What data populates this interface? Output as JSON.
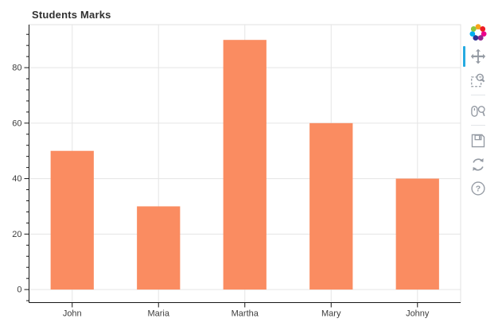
{
  "chart": {
    "title": "Students Marks"
  },
  "chart_data": {
    "type": "bar",
    "title": "Students Marks",
    "categories": [
      "John",
      "Maria",
      "Martha",
      "Mary",
      "Johny"
    ],
    "values": [
      50,
      30,
      90,
      60,
      40
    ],
    "xlabel": "",
    "ylabel": "",
    "ylim": [
      -4.7,
      95.5
    ],
    "yticks": [
      0,
      20,
      40,
      60,
      80
    ],
    "y_minor_step": 4,
    "grid": true,
    "legend_position": "none",
    "bar_color": "#FA8C61",
    "bar_width_ratio": 0.5,
    "grid_color": "#e5e5e5",
    "outline_color": "#e0e0e0",
    "axis_line_color": "#161616",
    "tick_label_color": "#3d3d3d",
    "tick_label_size": 11
  },
  "toolbar": {
    "icon_color": "#959ba4",
    "active_indicator_color": "#26aae1",
    "divider_color": "#e2e5e8",
    "active_tool": "pan",
    "tools": [
      {
        "id": "pan",
        "active": true
      },
      {
        "id": "box-zoom",
        "active": false
      },
      {
        "id": "wheel-zoom",
        "active": false
      },
      {
        "id": "save",
        "active": false
      },
      {
        "id": "reset",
        "active": false
      },
      {
        "id": "help",
        "active": false
      }
    ],
    "logo_colors": [
      "#F9A11B",
      "#ED1C24",
      "#EC008C",
      "#92278F",
      "#2E3192",
      "#00AEEF",
      "#8DC63F"
    ],
    "help_glyph": "?"
  }
}
